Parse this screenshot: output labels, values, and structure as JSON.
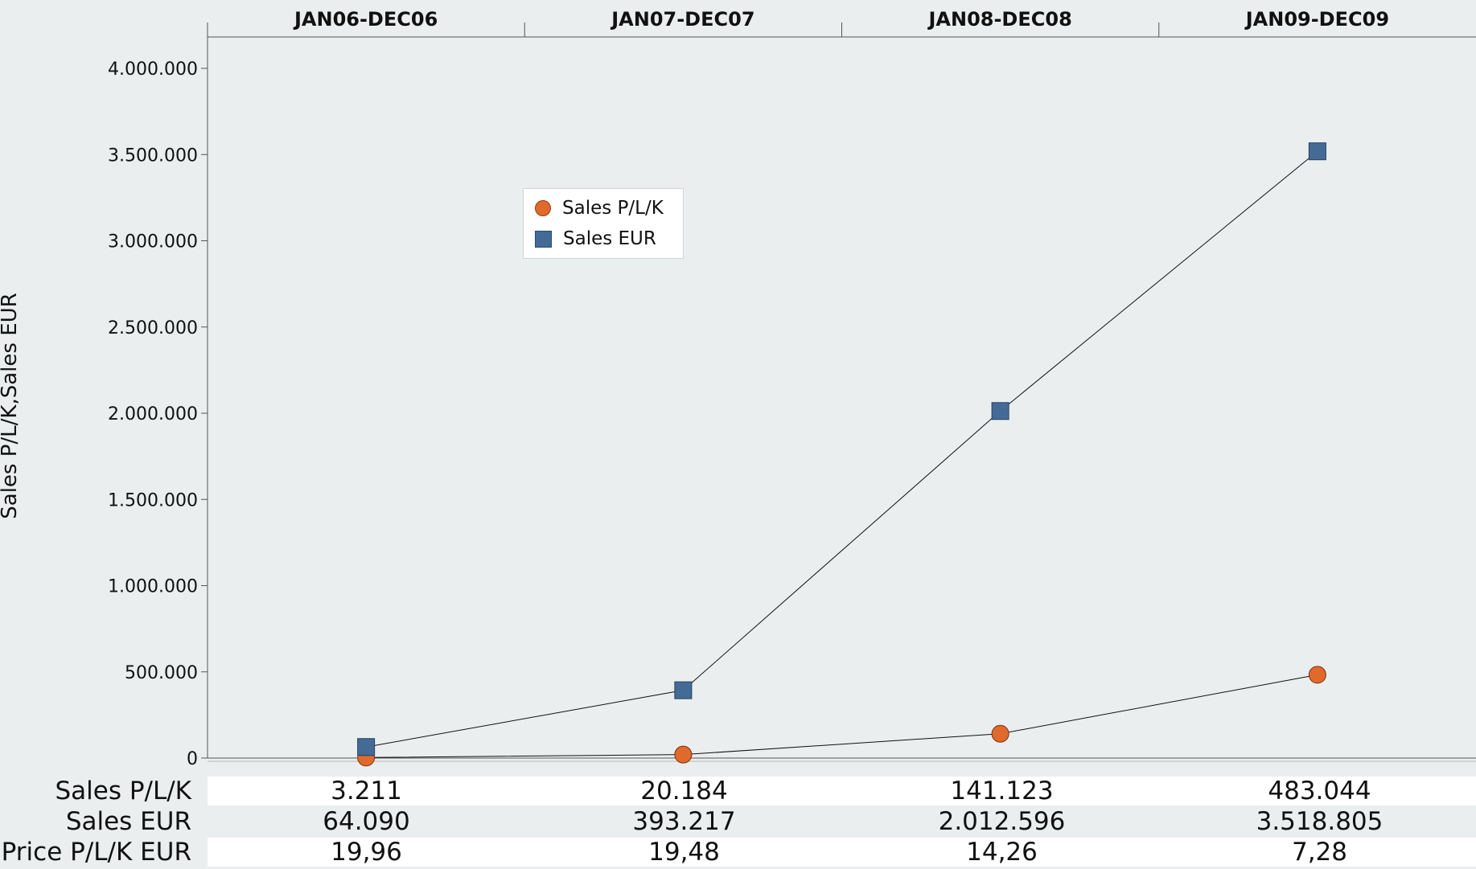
{
  "chart_data": {
    "type": "line",
    "categories": [
      "JAN06-DEC06",
      "JAN07-DEC07",
      "JAN08-DEC08",
      "JAN09-DEC09"
    ],
    "series": [
      {
        "name": "Sales P/L/K",
        "values": [
          3211,
          20184,
          141123,
          483044
        ],
        "color": "#e06a2c",
        "marker": "circle"
      },
      {
        "name": "Sales EUR",
        "values": [
          64090,
          393217,
          2012596,
          3518805
        ],
        "color": "#436b95",
        "marker": "square"
      }
    ],
    "ylabel": "Sales P/L/K,Sales EUR",
    "ylim": [
      0,
      4000000
    ],
    "yticks": [
      "0",
      "500.000",
      "1.000.000",
      "1.500.000",
      "2.000.000",
      "2.500.000",
      "3.000.000",
      "3.500.000",
      "4.000.000"
    ],
    "ytick_values": [
      0,
      500000,
      1000000,
      1500000,
      2000000,
      2500000,
      3000000,
      3500000,
      4000000
    ],
    "legend_position": "upper-left"
  },
  "table": {
    "rows": [
      {
        "label": "Sales P/L/K",
        "values": [
          "3.211",
          "20.184",
          "141.123",
          "483.044"
        ]
      },
      {
        "label": "Sales EUR",
        "values": [
          "64.090",
          "393.217",
          "2.012.596",
          "3.518.805"
        ]
      },
      {
        "label": "Price P/L/K EUR",
        "values": [
          "19,96",
          "19,48",
          "14,26",
          "7,28"
        ]
      }
    ]
  }
}
